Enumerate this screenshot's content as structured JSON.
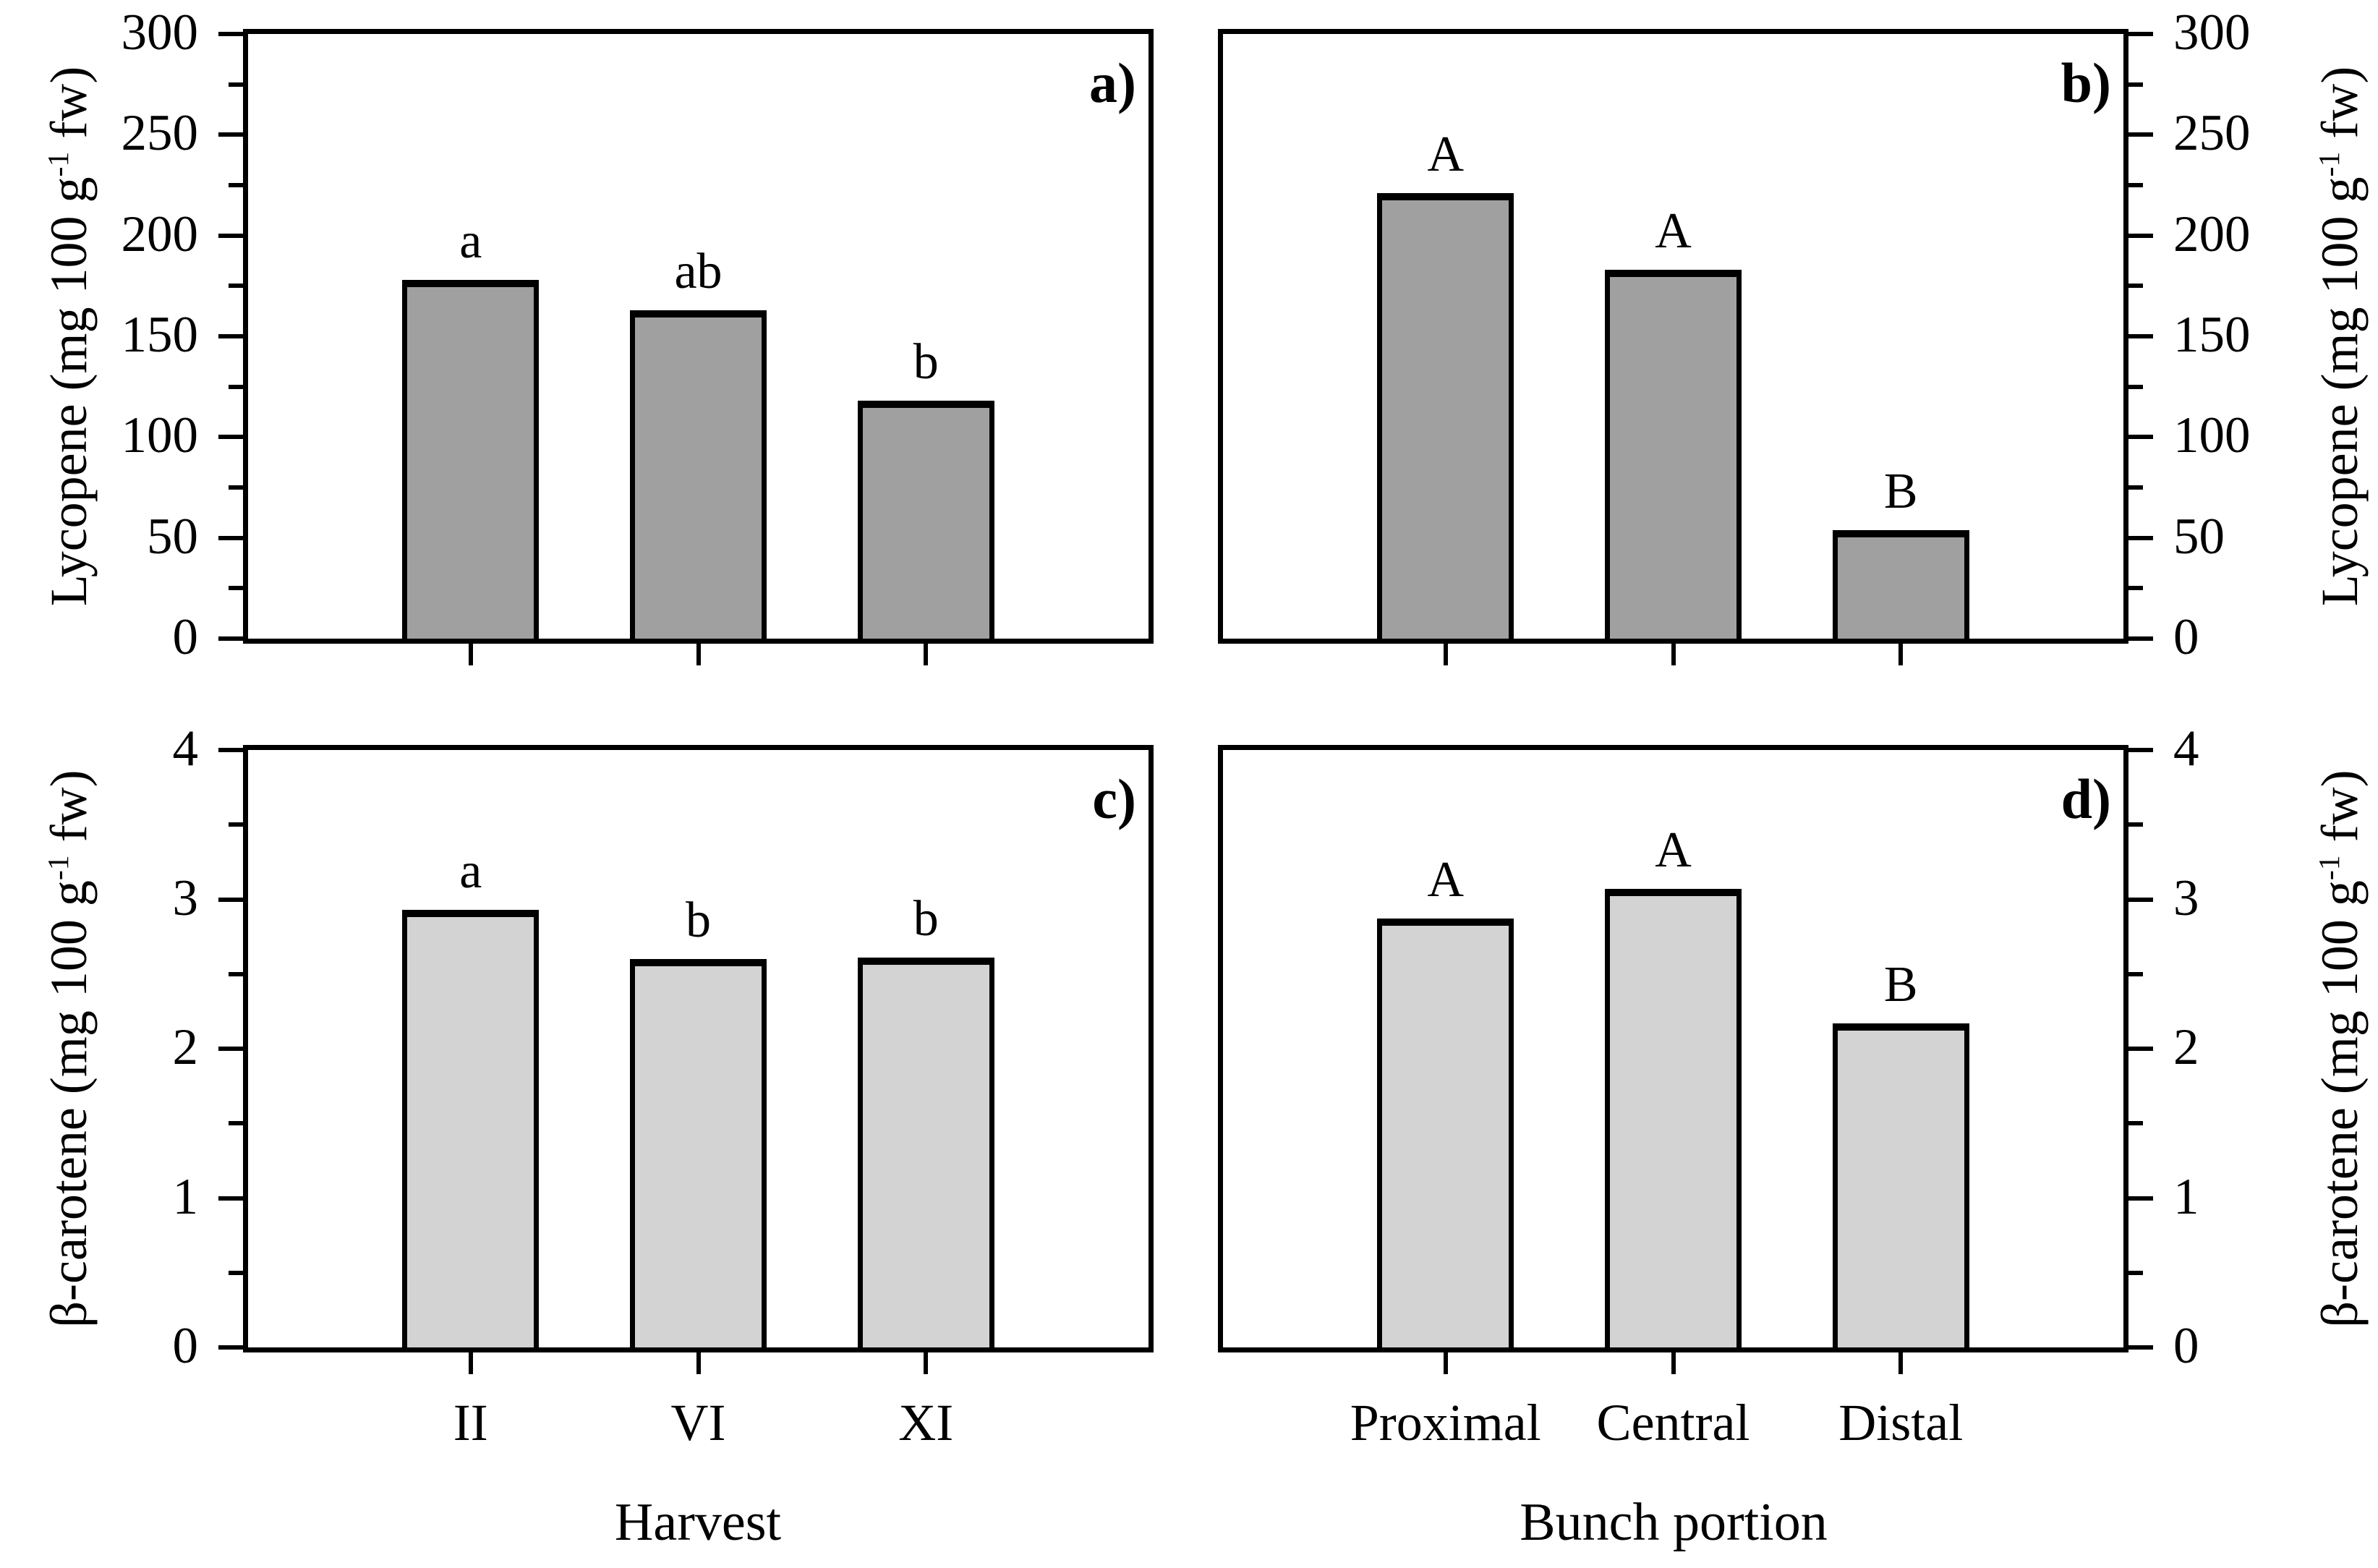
{
  "figure": {
    "background": "#ffffff",
    "frame_color": "#000000",
    "dark_bar_color": "#a0a0a0",
    "light_bar_color": "#d3d3d3"
  },
  "chart_data": [
    {
      "type": "bar",
      "panel_label": "a)",
      "ylabel_pre": "Lycopene (mg 100 g",
      "ylabel_sup": "-1",
      "ylabel_post": " fw)",
      "xlabel": "",
      "value_axis_side": "left",
      "ylim": [
        0,
        300
      ],
      "major_step": 50,
      "minor_step": 25,
      "y_tick_labels": [
        "0",
        "50",
        "100",
        "150",
        "200",
        "250",
        "300"
      ],
      "categories": [
        "II",
        "VI",
        "XI"
      ],
      "show_category_labels": false,
      "values": [
        178,
        163,
        118
      ],
      "bar_labels": [
        "a",
        "ab",
        "b"
      ],
      "bar_color": "#a0a0a0"
    },
    {
      "type": "bar",
      "panel_label": "b)",
      "ylabel_pre": "Lycopene (mg 100 g",
      "ylabel_sup": "-1",
      "ylabel_post": " fw)",
      "xlabel": "",
      "value_axis_side": "right",
      "ylim": [
        0,
        300
      ],
      "major_step": 50,
      "minor_step": 25,
      "y_tick_labels": [
        "0",
        "50",
        "100",
        "150",
        "200",
        "250",
        "300"
      ],
      "categories": [
        "Proximal",
        "Central",
        "Distal"
      ],
      "show_category_labels": false,
      "values": [
        221,
        183,
        54
      ],
      "bar_labels": [
        "A",
        "A",
        "B"
      ],
      "bar_color": "#a0a0a0"
    },
    {
      "type": "bar",
      "panel_label": "c)",
      "ylabel_pre": "β-carotene (mg 100 g",
      "ylabel_sup": "-1",
      "ylabel_post": " fw)",
      "xlabel": "Harvest",
      "value_axis_side": "left",
      "ylim": [
        0,
        4
      ],
      "major_step": 1,
      "minor_step": 0.5,
      "y_tick_labels": [
        "0",
        "1",
        "2",
        "3",
        "4"
      ],
      "categories": [
        "II",
        "VI",
        "XI"
      ],
      "show_category_labels": true,
      "values": [
        2.93,
        2.6,
        2.61
      ],
      "bar_labels": [
        "a",
        "b",
        "b"
      ],
      "bar_color": "#d3d3d3"
    },
    {
      "type": "bar",
      "panel_label": "d)",
      "ylabel_pre": "β-carotene (mg 100 g",
      "ylabel_sup": "-1",
      "ylabel_post": " fw)",
      "xlabel": "Bunch portion",
      "value_axis_side": "right",
      "ylim": [
        0,
        4
      ],
      "major_step": 1,
      "minor_step": 0.5,
      "y_tick_labels": [
        "0",
        "1",
        "2",
        "3",
        "4"
      ],
      "categories": [
        "Proximal",
        "Central",
        "Distal"
      ],
      "show_category_labels": true,
      "values": [
        2.87,
        3.07,
        2.17
      ],
      "bar_labels": [
        "A",
        "A",
        "B"
      ],
      "bar_color": "#d3d3d3"
    }
  ]
}
